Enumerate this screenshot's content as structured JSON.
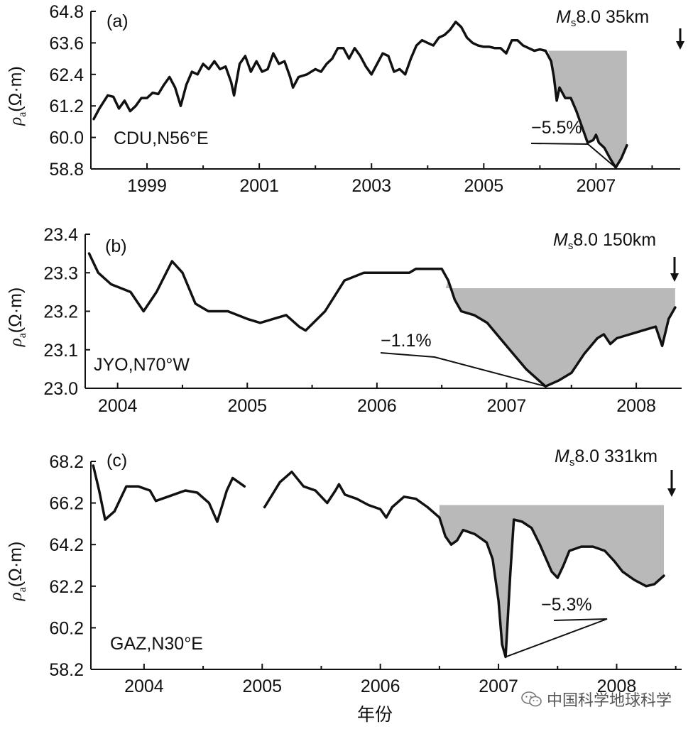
{
  "colors": {
    "line": "#111111",
    "fill": "#b9b9b9"
  },
  "chart_data": [
    {
      "type": "line",
      "panel": "(a)",
      "station": "CDU,N56°E",
      "ylabel_parts": [
        "ρ",
        "a",
        "(Ω·m)"
      ],
      "ylim": [
        58.8,
        64.8
      ],
      "xlim": [
        1998,
        2008.5
      ],
      "yticks": [
        "64.8",
        "63.6",
        "62.4",
        "61.2",
        "60.0",
        "58.8"
      ],
      "ytick_values": [
        64.8,
        63.6,
        62.4,
        61.2,
        60.0,
        58.8
      ],
      "xticks": [
        "1999",
        "2001",
        "2003",
        "2005",
        "2007"
      ],
      "xtick_values": [
        1999,
        2001,
        2003,
        2005,
        2007
      ],
      "quake_parts": [
        "M",
        "s",
        "8.0  35km"
      ],
      "quake_year": 2008.4,
      "anomaly_label": "−5.5%",
      "series": [
        {
          "name": "apparent resistivity",
          "segments": [
            [
              [
                1998.05,
                60.7
              ],
              [
                1998.15,
                61.1
              ],
              [
                1998.3,
                61.6
              ],
              [
                1998.4,
                61.55
              ],
              [
                1998.5,
                61.1
              ],
              [
                1998.6,
                61.4
              ],
              [
                1998.7,
                61.0
              ],
              [
                1998.8,
                61.2
              ],
              [
                1998.9,
                61.5
              ],
              [
                1999.0,
                61.5
              ],
              [
                1999.1,
                61.7
              ],
              [
                1999.2,
                61.65
              ],
              [
                1999.3,
                62.0
              ],
              [
                1999.4,
                62.3
              ],
              [
                1999.5,
                61.9
              ],
              [
                1999.6,
                61.2
              ],
              [
                1999.7,
                62.0
              ],
              [
                1999.8,
                62.5
              ],
              [
                1999.9,
                62.4
              ],
              [
                2000.0,
                62.8
              ],
              [
                2000.1,
                62.6
              ],
              [
                2000.2,
                62.9
              ],
              [
                2000.3,
                62.6
              ],
              [
                2000.4,
                62.7
              ],
              [
                2000.5,
                62.1
              ],
              [
                2000.55,
                61.6
              ],
              [
                2000.65,
                62.8
              ],
              [
                2000.75,
                63.1
              ],
              [
                2000.85,
                62.5
              ],
              [
                2000.95,
                62.9
              ],
              [
                2001.05,
                62.5
              ],
              [
                2001.15,
                62.6
              ],
              [
                2001.25,
                63.2
              ],
              [
                2001.35,
                62.8
              ],
              [
                2001.45,
                62.9
              ],
              [
                2001.55,
                62.3
              ],
              [
                2001.6,
                61.9
              ],
              [
                2001.7,
                62.3
              ],
              [
                2001.85,
                62.4
              ],
              [
                2002.0,
                62.6
              ],
              [
                2002.1,
                62.5
              ],
              [
                2002.2,
                62.8
              ],
              [
                2002.3,
                63.0
              ],
              [
                2002.4,
                63.4
              ],
              [
                2002.5,
                63.4
              ],
              [
                2002.6,
                63.0
              ],
              [
                2002.7,
                63.4
              ],
              [
                2002.8,
                63.1
              ],
              [
                2002.9,
                62.7
              ],
              [
                2003.0,
                62.4
              ],
              [
                2003.1,
                62.8
              ],
              [
                2003.2,
                63.2
              ],
              [
                2003.3,
                63.1
              ],
              [
                2003.4,
                62.5
              ],
              [
                2003.5,
                62.6
              ],
              [
                2003.6,
                62.4
              ],
              [
                2003.7,
                63.0
              ],
              [
                2003.8,
                63.5
              ],
              [
                2003.9,
                63.7
              ],
              [
                2004.0,
                63.6
              ],
              [
                2004.1,
                63.5
              ],
              [
                2004.2,
                63.8
              ],
              [
                2004.3,
                63.9
              ],
              [
                2004.4,
                64.1
              ],
              [
                2004.5,
                64.4
              ],
              [
                2004.6,
                64.2
              ],
              [
                2004.7,
                63.8
              ],
              [
                2004.8,
                63.6
              ],
              [
                2004.9,
                63.5
              ],
              [
                2005.0,
                63.45
              ],
              [
                2005.1,
                63.45
              ],
              [
                2005.2,
                63.4
              ],
              [
                2005.3,
                63.4
              ],
              [
                2005.4,
                63.2
              ],
              [
                2005.5,
                63.7
              ],
              [
                2005.6,
                63.7
              ],
              [
                2005.7,
                63.5
              ],
              [
                2005.8,
                63.4
              ],
              [
                2005.9,
                63.3
              ],
              [
                2006.0,
                63.35
              ],
              [
                2006.1,
                63.3
              ],
              [
                2006.2,
                62.9
              ],
              [
                2006.25,
                62.3
              ],
              [
                2006.3,
                61.4
              ],
              [
                2006.35,
                61.9
              ],
              [
                2006.45,
                61.5
              ],
              [
                2006.55,
                61.5
              ],
              [
                2006.65,
                61.0
              ],
              [
                2006.75,
                60.4
              ],
              [
                2006.85,
                59.8
              ],
              [
                2006.95,
                59.9
              ],
              [
                2007.0,
                60.1
              ],
              [
                2007.05,
                59.8
              ],
              [
                2007.15,
                59.6
              ],
              [
                2007.25,
                59.2
              ],
              [
                2007.35,
                58.85
              ],
              [
                2007.45,
                59.2
              ],
              [
                2007.55,
                59.7
              ]
            ]
          ]
        }
      ],
      "shade_top": 63.3,
      "shade_from": 2006.15,
      "shade_to": 2007.55
    },
    {
      "type": "line",
      "panel": "(b)",
      "station": "JYO,N70°W",
      "ylabel_parts": [
        "ρ",
        "a",
        "(Ω·m)"
      ],
      "ylim": [
        23.0,
        23.4
      ],
      "xlim": [
        2003.75,
        2008.35
      ],
      "yticks": [
        "23.4",
        "23.3",
        "23.2",
        "23.1",
        "23.0"
      ],
      "ytick_values": [
        23.4,
        23.3,
        23.2,
        23.1,
        23.0
      ],
      "xticks": [
        "2004",
        "2005",
        "2006",
        "2007",
        "2008"
      ],
      "xtick_values": [
        2004,
        2005,
        2006,
        2007,
        2008
      ],
      "quake_parts": [
        "M",
        "s",
        "8.0 150km"
      ],
      "quake_year": 2008.3,
      "anomaly_label": "−1.1%",
      "series": [
        {
          "name": "apparent resistivity",
          "segments": [
            [
              [
                2003.78,
                23.35
              ],
              [
                2003.85,
                23.3
              ],
              [
                2003.95,
                23.27
              ],
              [
                2004.1,
                23.25
              ],
              [
                2004.2,
                23.2
              ],
              [
                2004.3,
                23.25
              ],
              [
                2004.42,
                23.33
              ],
              [
                2004.5,
                23.3
              ],
              [
                2004.6,
                23.22
              ],
              [
                2004.7,
                23.2
              ],
              [
                2004.85,
                23.2
              ],
              [
                2005.0,
                23.18
              ],
              [
                2005.1,
                23.17
              ],
              [
                2005.2,
                23.18
              ],
              [
                2005.3,
                23.19
              ],
              [
                2005.4,
                23.16
              ],
              [
                2005.45,
                23.15
              ],
              [
                2005.6,
                23.2
              ],
              [
                2005.75,
                23.28
              ],
              [
                2005.9,
                23.3
              ],
              [
                2006.0,
                23.3
              ],
              [
                2006.1,
                23.3
              ],
              [
                2006.2,
                23.3
              ],
              [
                2006.25,
                23.3
              ],
              [
                2006.3,
                23.31
              ],
              [
                2006.4,
                23.31
              ],
              [
                2006.5,
                23.31
              ],
              [
                2006.55,
                23.28
              ],
              [
                2006.6,
                23.23
              ],
              [
                2006.65,
                23.2
              ],
              [
                2006.75,
                23.19
              ],
              [
                2006.85,
                23.17
              ],
              [
                2006.95,
                23.13
              ],
              [
                2007.05,
                23.09
              ],
              [
                2007.15,
                23.05
              ],
              [
                2007.25,
                23.02
              ],
              [
                2007.3,
                23.005
              ],
              [
                2007.4,
                23.02
              ],
              [
                2007.5,
                23.04
              ],
              [
                2007.6,
                23.09
              ],
              [
                2007.7,
                23.13
              ],
              [
                2007.75,
                23.14
              ],
              [
                2007.8,
                23.115
              ],
              [
                2007.85,
                23.13
              ],
              [
                2007.95,
                23.14
              ],
              [
                2008.05,
                23.15
              ],
              [
                2008.15,
                23.16
              ],
              [
                2008.2,
                23.11
              ],
              [
                2008.25,
                23.18
              ],
              [
                2008.3,
                23.21
              ]
            ]
          ]
        }
      ],
      "shade_top": 23.26,
      "shade_from": 2006.53,
      "shade_to": 2008.3
    },
    {
      "type": "line",
      "panel": "(c)",
      "station": "GAZ,N30°E",
      "ylabel_parts": [
        "ρ",
        "a",
        "(Ω·m)"
      ],
      "ylim": [
        58.2,
        68.2
      ],
      "xlim": [
        2003.55,
        2008.55
      ],
      "yticks": [
        "68.2",
        "66.2",
        "64.2",
        "62.2",
        "60.2",
        "58.2"
      ],
      "ytick_values": [
        68.2,
        66.2,
        64.2,
        62.2,
        60.2,
        58.2
      ],
      "xticks": [
        "2004",
        "2005",
        "2006",
        "2007",
        "2008"
      ],
      "xtick_values": [
        2004,
        2005,
        2006,
        2007,
        2008
      ],
      "quake_parts": [
        "M",
        "s",
        "8.0  331km"
      ],
      "quake_year": 2008.45,
      "anomaly_label": "−5.3%",
      "series": [
        {
          "name": "apparent resistivity",
          "segments": [
            [
              [
                2003.57,
                68.0
              ],
              [
                2003.62,
                66.8
              ],
              [
                2003.67,
                65.4
              ],
              [
                2003.75,
                65.8
              ],
              [
                2003.85,
                67.0
              ],
              [
                2003.95,
                67.0
              ],
              [
                2004.05,
                66.8
              ],
              [
                2004.1,
                66.3
              ],
              [
                2004.2,
                66.5
              ],
              [
                2004.35,
                66.8
              ],
              [
                2004.45,
                66.7
              ],
              [
                2004.55,
                66.2
              ],
              [
                2004.62,
                65.3
              ],
              [
                2004.7,
                66.8
              ],
              [
                2004.75,
                67.4
              ],
              [
                2004.85,
                67.0
              ]
            ],
            [
              [
                2005.02,
                66.0
              ],
              [
                2005.15,
                67.2
              ],
              [
                2005.25,
                67.7
              ],
              [
                2005.35,
                67.0
              ],
              [
                2005.45,
                66.8
              ],
              [
                2005.55,
                66.2
              ],
              [
                2005.62,
                66.8
              ],
              [
                2005.65,
                67.1
              ],
              [
                2005.7,
                66.6
              ],
              [
                2005.8,
                66.4
              ],
              [
                2005.9,
                66.1
              ],
              [
                2006.0,
                65.9
              ],
              [
                2006.05,
                65.5
              ],
              [
                2006.1,
                66.0
              ],
              [
                2006.2,
                66.5
              ],
              [
                2006.3,
                66.4
              ],
              [
                2006.4,
                66.0
              ],
              [
                2006.5,
                65.5
              ],
              [
                2006.55,
                64.6
              ],
              [
                2006.6,
                64.2
              ],
              [
                2006.65,
                64.4
              ],
              [
                2006.7,
                64.9
              ],
              [
                2006.8,
                64.7
              ],
              [
                2006.9,
                64.3
              ],
              [
                2006.95,
                63.5
              ],
              [
                2007.0,
                61.5
              ],
              [
                2007.03,
                59.4
              ],
              [
                2007.06,
                58.8
              ],
              [
                2007.1,
                62.8
              ],
              [
                2007.13,
                65.4
              ],
              [
                2007.2,
                65.3
              ],
              [
                2007.28,
                65.0
              ],
              [
                2007.35,
                64.2
              ],
              [
                2007.45,
                62.9
              ],
              [
                2007.5,
                62.6
              ],
              [
                2007.55,
                63.2
              ],
              [
                2007.6,
                63.9
              ],
              [
                2007.7,
                64.1
              ],
              [
                2007.8,
                64.1
              ],
              [
                2007.9,
                63.9
              ],
              [
                2007.98,
                63.4
              ],
              [
                2008.05,
                62.9
              ],
              [
                2008.15,
                62.5
              ],
              [
                2008.25,
                62.2
              ],
              [
                2008.32,
                62.3
              ],
              [
                2008.4,
                62.7
              ]
            ]
          ]
        }
      ],
      "shade_top": 66.1,
      "shade_from": 2006.5,
      "shade_to": 2008.4
    }
  ],
  "xaxis_label": "年份",
  "watermark": "中国科学地球科学"
}
